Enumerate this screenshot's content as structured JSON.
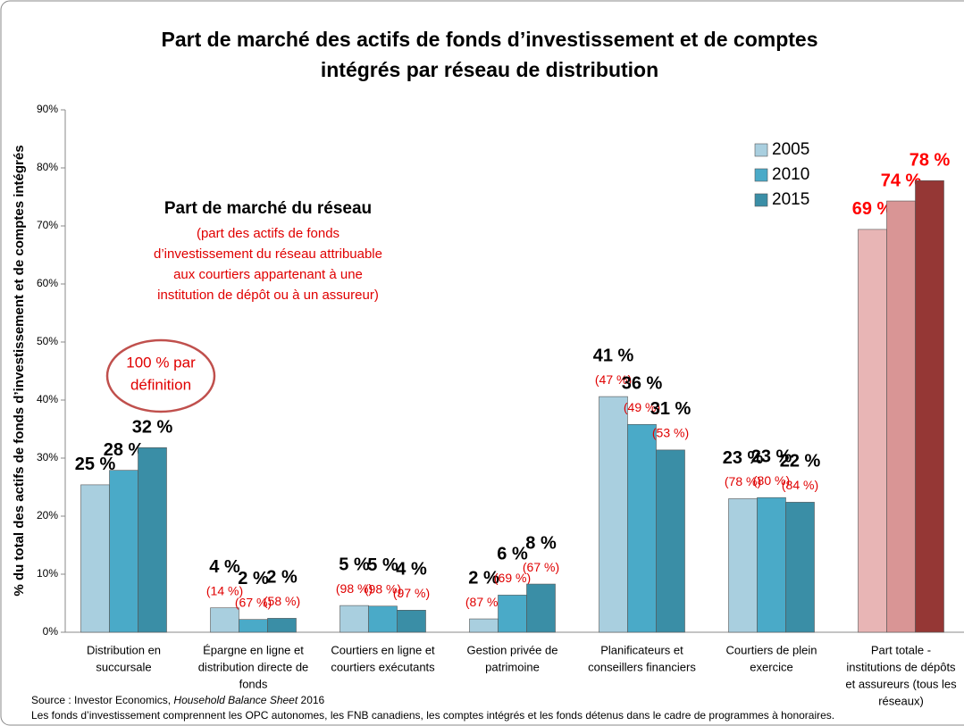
{
  "chart_data": {
    "type": "bar",
    "title": [
      "Part de marché des actifs de fonds d’investissement et de comptes",
      "intégrés par réseau de distribution"
    ],
    "y_label": "% du total des actifs de fonds d’investissement et de comptes intégrés",
    "categories": [
      [
        "Distribution en",
        "succursale"
      ],
      [
        "Épargne en ligne et",
        "distribution directe de",
        "fonds"
      ],
      [
        "Courtiers en ligne et",
        "courtiers exécutants"
      ],
      [
        "Gestion privée de",
        "patrimoine"
      ],
      [
        "Planificateurs et",
        "conseillers financiers"
      ],
      [
        "Courtiers de plein",
        "exercice"
      ],
      [
        "Part totale -",
        "institutions de dépôts",
        "et assureurs (tous les",
        "réseaux)"
      ]
    ],
    "series": [
      {
        "name": "2005",
        "color": "#a9cfdf",
        "highlight_color": "#e8b5b5",
        "values": [
          25.4,
          4.2,
          4.6,
          2.3,
          40.6,
          23.0,
          69.4
        ],
        "value_labels": [
          "25 %",
          "4 %",
          "5 %",
          "2 %",
          "41 %",
          "23 %",
          "69 %"
        ],
        "share_labels": [
          null,
          "(14 %)",
          "(98 %)",
          "(87 %)",
          "(47 %)",
          "(78 %)",
          null
        ]
      },
      {
        "name": "2010",
        "color": "#4aaac8",
        "highlight_color": "#d99595",
        "values": [
          27.9,
          2.2,
          4.5,
          6.4,
          35.8,
          23.2,
          74.3
        ],
        "value_labels": [
          "28 %",
          "2 %",
          "5 %",
          "6 %",
          "36 %",
          "23 %",
          "74 %"
        ],
        "share_labels": [
          null,
          "(67 %)",
          "(98 %)",
          "(69 %)",
          "(49 %)",
          "(80 %)",
          null
        ]
      },
      {
        "name": "2015",
        "color": "#3a8ea6",
        "highlight_color": "#953735",
        "values": [
          31.8,
          2.4,
          3.8,
          8.3,
          31.4,
          22.4,
          77.8
        ],
        "value_labels": [
          "32 %",
          "2 %",
          "4 %",
          "8 %",
          "31 %",
          "22 %",
          "78 %"
        ],
        "share_labels": [
          null,
          "(58 %)",
          "(97 %)",
          "(67 %)",
          "(53 %)",
          "(84 %)",
          null
        ]
      }
    ],
    "ylim": [
      0,
      90
    ],
    "yticks": [
      {
        "value": 0,
        "label": "0%"
      },
      {
        "value": 10,
        "label": "10%"
      },
      {
        "value": 20,
        "label": "20%"
      },
      {
        "value": 30,
        "label": "30%"
      },
      {
        "value": 40,
        "label": "40%"
      },
      {
        "value": 50,
        "label": "50%"
      },
      {
        "value": 60,
        "label": "60%"
      },
      {
        "value": 70,
        "label": "70%"
      },
      {
        "value": 80,
        "label": "80%"
      },
      {
        "value": 90,
        "label": "90%"
      }
    ],
    "grid": false,
    "legend": "upper-right",
    "annotation": {
      "heading": "Part de marché du réseau",
      "lines": [
        "(part des actifs de fonds",
        "d’investissement du réseau attribuable",
        "aux courtiers appartenant à une",
        "institution de dépôt ou à un assureur)"
      ]
    },
    "callout": [
      "100 % par",
      "définition"
    ],
    "source": {
      "prefix": "Source : Investor Economics, ",
      "italic": "Household Balance Sheet",
      "suffix": " 2016"
    },
    "footnote": "Les fonds d’investissement comprennent les OPC autonomes, les FNB canadiens, les comptes intégrés et les fonds détenus dans le cadre de programmes à honoraires."
  }
}
